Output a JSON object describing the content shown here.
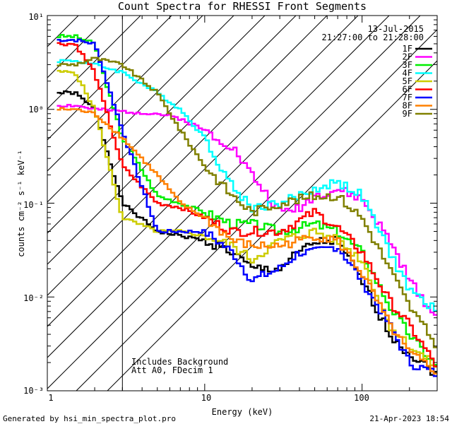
{
  "chart_data": {
    "type": "line",
    "title": "Count Spectra for RHESSI Front Segments",
    "date": "13-Jul-2015",
    "time_range": "21:27:00 to 21:28:00",
    "xlabel": "Energy (keV)",
    "ylabel": "counts cm⁻² s⁻¹ keV⁻¹",
    "xscale": "log",
    "yscale": "log",
    "xlim": [
      1,
      300
    ],
    "ylim": [
      0.001,
      10
    ],
    "xticklabels": [
      "1",
      "10",
      "100"
    ],
    "yticklabels": [
      "10⁻³",
      "10⁻²",
      "10⁻¹",
      "10⁰",
      "10¹"
    ],
    "shaded_region": {
      "from_kev": 1,
      "to_kev": 3,
      "style": "hatched"
    },
    "annotations": [
      "Includes Background",
      "Att A0, FDecim 1"
    ],
    "footer_left": "Generated by hsi_min_spectra_plot.pro",
    "footer_right": "21-Apr-2023 18:54",
    "x": [
      1.5,
      2,
      3,
      5,
      7,
      10,
      15,
      20,
      30,
      40,
      50,
      70,
      100,
      150,
      200,
      300
    ],
    "series": [
      {
        "name": "1F",
        "color": "#000000",
        "values": [
          1.5,
          1.0,
          0.1,
          0.05,
          0.045,
          0.04,
          0.03,
          0.02,
          0.02,
          0.03,
          0.038,
          0.04,
          0.015,
          0.004,
          0.0025,
          0.0015
        ]
      },
      {
        "name": "2F",
        "color": "#ff00ff",
        "values": [
          1.1,
          1.0,
          0.95,
          0.9,
          0.8,
          0.6,
          0.4,
          0.2,
          0.08,
          0.09,
          0.12,
          0.14,
          0.11,
          0.04,
          0.015,
          0.006
        ]
      },
      {
        "name": "3F",
        "color": "#00ee00",
        "values": [
          6.0,
          5.0,
          0.5,
          0.12,
          0.1,
          0.08,
          0.06,
          0.06,
          0.05,
          0.055,
          0.06,
          0.05,
          0.03,
          0.008,
          0.004,
          0.0018
        ]
      },
      {
        "name": "4F",
        "color": "#00ffff",
        "values": [
          3.3,
          3.0,
          2.5,
          1.5,
          1.0,
          0.5,
          0.15,
          0.09,
          0.1,
          0.12,
          0.14,
          0.17,
          0.12,
          0.03,
          0.012,
          0.007
        ]
      },
      {
        "name": "5F",
        "color": "#cccc00",
        "values": [
          2.5,
          1.0,
          0.07,
          0.05,
          0.05,
          0.045,
          0.035,
          0.025,
          0.04,
          0.045,
          0.05,
          0.04,
          0.025,
          0.005,
          0.003,
          0.0018
        ]
      },
      {
        "name": "6F",
        "color": "#ff0000",
        "values": [
          5.0,
          2.5,
          0.25,
          0.1,
          0.09,
          0.07,
          0.05,
          0.05,
          0.05,
          0.065,
          0.08,
          0.055,
          0.03,
          0.009,
          0.005,
          0.0018
        ]
      },
      {
        "name": "7F",
        "color": "#0000ff",
        "values": [
          5.5,
          5.0,
          0.6,
          0.05,
          0.05,
          0.05,
          0.03,
          0.015,
          0.02,
          0.03,
          0.03,
          0.035,
          0.015,
          0.005,
          0.002,
          0.0015
        ]
      },
      {
        "name": "8F",
        "color": "#ff8000",
        "values": [
          1.0,
          0.9,
          0.5,
          0.2,
          0.1,
          0.07,
          0.04,
          0.035,
          0.035,
          0.04,
          0.045,
          0.04,
          0.018,
          0.005,
          0.0025,
          0.0016
        ]
      },
      {
        "name": "9F",
        "color": "#808000",
        "values": [
          3.0,
          3.5,
          3.0,
          1.5,
          0.6,
          0.25,
          0.12,
          0.08,
          0.1,
          0.11,
          0.12,
          0.12,
          0.07,
          0.02,
          0.008,
          0.003
        ]
      }
    ]
  }
}
